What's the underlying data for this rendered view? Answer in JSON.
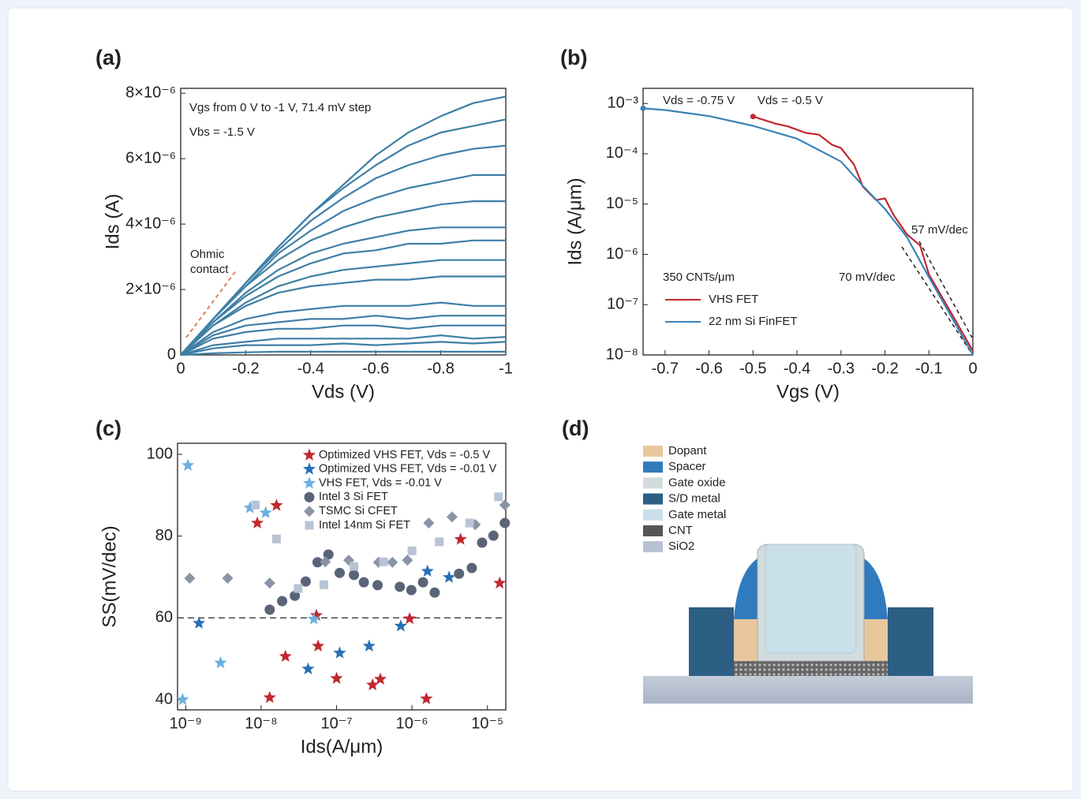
{
  "chart_data": [
    {
      "type": "line",
      "label": "(a)",
      "xlabel": "Vds (V)",
      "ylabel": "Ids (A)",
      "color": "#3f7fa6",
      "xlim": [
        0,
        -1
      ],
      "xticks": [
        0,
        -0.2,
        -0.4,
        -0.6,
        -0.8,
        -1
      ],
      "ylim": [
        0,
        8.15e-06
      ],
      "yticks": [
        0,
        {
          "value": 2e-06,
          "label": "2×10⁻⁶"
        },
        {
          "value": 4e-06,
          "label": "4×10⁻⁶"
        },
        {
          "value": 6e-06,
          "label": "6×10⁻⁶"
        },
        {
          "value": 8e-06,
          "label": "8×10⁻⁶"
        }
      ],
      "annotations": [
        {
          "text": "Vgs from 0 V to -1 V, 71.4 mV step",
          "color": "#222222"
        },
        {
          "text": "Vbs = -1.5 V",
          "color": "#222222"
        },
        {
          "text": "Ohmic",
          "color": "#d9805a"
        },
        {
          "text": "contact",
          "color": "#d9805a"
        }
      ],
      "x": [
        0,
        -0.1,
        -0.2,
        -0.3,
        -0.4,
        -0.5,
        -0.6,
        -0.7,
        -0.8,
        -0.9,
        -1
      ],
      "series": [
        {
          "values": [
            0,
            1.1e-06,
            2.2e-06,
            3.3e-06,
            4.3e-06,
            5.2e-06,
            6.1e-06,
            6.8e-06,
            7.3e-06,
            7.7e-06,
            7.9e-06
          ]
        },
        {
          "values": [
            0,
            1.1e-06,
            2.2e-06,
            3.3e-06,
            4.3e-06,
            5.1e-06,
            5.8e-06,
            6.4e-06,
            6.8e-06,
            7e-06,
            7.2e-06
          ]
        },
        {
          "values": [
            0,
            1.1e-06,
            2.2e-06,
            3.2e-06,
            4.1e-06,
            4.8e-06,
            5.4e-06,
            5.8e-06,
            6.1e-06,
            6.3e-06,
            6.4e-06
          ]
        },
        {
          "values": [
            0,
            1.1e-06,
            2.1e-06,
            3.1e-06,
            3.8e-06,
            4.4e-06,
            4.8e-06,
            5.1e-06,
            5.3e-06,
            5.5e-06,
            5.5e-06
          ]
        },
        {
          "values": [
            0,
            1.1e-06,
            2.1e-06,
            2.9e-06,
            3.5e-06,
            3.9e-06,
            4.2e-06,
            4.4e-06,
            4.6e-06,
            4.7e-06,
            4.7e-06
          ]
        },
        {
          "values": [
            0,
            1e-06,
            1.9e-06,
            2.6e-06,
            3.1e-06,
            3.4e-06,
            3.6e-06,
            3.8e-06,
            3.9e-06,
            3.9e-06,
            3.9e-06
          ]
        },
        {
          "values": [
            0,
            1e-06,
            1.8e-06,
            2.4e-06,
            2.8e-06,
            3.1e-06,
            3.2e-06,
            3.4e-06,
            3.4e-06,
            3.5e-06,
            3.5e-06
          ]
        },
        {
          "values": [
            0,
            9e-07,
            1.6e-06,
            2.1e-06,
            2.4e-06,
            2.6e-06,
            2.7e-06,
            2.8e-06,
            2.9e-06,
            2.9e-06,
            2.9e-06
          ]
        },
        {
          "values": [
            0,
            9e-07,
            1.5e-06,
            1.9e-06,
            2.1e-06,
            2.2e-06,
            2.3e-06,
            2.3e-06,
            2.4e-06,
            2.4e-06,
            2.4e-06
          ]
        },
        {
          "values": [
            0,
            7e-07,
            1.1e-06,
            1.3e-06,
            1.4e-06,
            1.5e-06,
            1.5e-06,
            1.5e-06,
            1.6e-06,
            1.5e-06,
            1.5e-06
          ]
        },
        {
          "values": [
            0,
            6e-07,
            9e-07,
            1e-06,
            1.1e-06,
            1.1e-06,
            1.2e-06,
            1.1e-06,
            1.2e-06,
            1.2e-06,
            1.2e-06
          ]
        },
        {
          "values": [
            0,
            5e-07,
            7e-07,
            8e-07,
            8e-07,
            9e-07,
            9e-07,
            8e-07,
            9e-07,
            9e-07,
            9e-07
          ]
        },
        {
          "values": [
            0,
            3e-07,
            4e-07,
            5e-07,
            5e-07,
            5e-07,
            5e-07,
            5e-07,
            6e-07,
            5e-07,
            5.5e-07
          ]
        },
        {
          "values": [
            0,
            2e-07,
            3e-07,
            3e-07,
            3e-07,
            3.5e-07,
            3e-07,
            3.5e-07,
            4e-07,
            3.5e-07,
            4e-07
          ]
        },
        {
          "values": [
            0,
            5e-08,
            8e-08,
            1e-07,
            1e-07,
            1e-07,
            1e-07,
            1e-07,
            1e-07,
            1e-07,
            1e-07
          ]
        }
      ]
    },
    {
      "type": "line",
      "label": "(b)",
      "xlabel": "Vgs (V)",
      "ylabel": "Ids (A/μm)",
      "yscale": "log",
      "legend": "lower left",
      "start_dot": true,
      "xlim": [
        -0.75,
        0
      ],
      "xticks": [
        -0.7,
        -0.6,
        -0.5,
        -0.4,
        -0.3,
        -0.2,
        -0.1,
        0
      ],
      "ylim": [
        1e-08,
        0.002
      ],
      "yticks": [
        {
          "value": 1e-08,
          "label": "10⁻⁸"
        },
        {
          "value": 1e-07,
          "label": "10⁻⁷"
        },
        {
          "value": 1e-06,
          "label": "10⁻⁶"
        },
        {
          "value": 1e-05,
          "label": "10⁻⁵"
        },
        {
          "value": 0.0001,
          "label": "10⁻⁴"
        },
        {
          "value": 0.001,
          "label": "10⁻³"
        }
      ],
      "annotations": [
        {
          "text": "Vds = -0.75 V",
          "color": "#222222"
        },
        {
          "text": "Vds = -0.5 V",
          "color": "#c0282e"
        },
        {
          "text": "57 mV/dec",
          "color": "#222222"
        },
        {
          "text": "70 mV/dec",
          "color": "#222222"
        },
        {
          "text": "350 CNTs/μm",
          "color": "#222222"
        }
      ],
      "series": [
        {
          "name": "VHS FET",
          "color": "#c0282e",
          "x": [
            -0.5,
            -0.45,
            -0.42,
            -0.38,
            -0.35,
            -0.32,
            -0.3,
            -0.27,
            -0.25,
            -0.22,
            -0.2,
            -0.18,
            -0.15,
            -0.12,
            -0.1,
            -0.05,
            0
          ],
          "values": [
            0.00055,
            0.0004,
            0.00035,
            0.00026,
            0.00024,
            0.00015,
            0.00013,
            6e-05,
            2.2e-05,
            1.2e-05,
            1.3e-05,
            6e-06,
            2.5e-06,
            1.5e-06,
            4e-07,
            7e-08,
            1.2e-08
          ]
        },
        {
          "name": "22 nm Si FinFET",
          "color": "#3b82b8",
          "x": [
            -0.75,
            -0.7,
            -0.6,
            -0.5,
            -0.4,
            -0.3,
            -0.25,
            -0.2,
            -0.15,
            -0.1,
            -0.05,
            0
          ],
          "values": [
            0.0008,
            0.00074,
            0.00056,
            0.00036,
            0.0002,
            7e-05,
            2.3e-05,
            8e-06,
            2.2e-06,
            3.5e-07,
            6e-08,
            1e-08
          ]
        }
      ]
    },
    {
      "type": "scatter",
      "label": "(c)",
      "xlabel": "Ids(A/μm)",
      "ylabel": "SS(mV/dec)",
      "xscale": "log",
      "legend": "upper right",
      "reference_line": 60,
      "xlim": [
        7.8e-10,
        1.75e-05
      ],
      "xticks": [
        {
          "value": 1e-09,
          "label": "10⁻⁹"
        },
        {
          "value": 1e-08,
          "label": "10⁻⁸"
        },
        {
          "value": 1e-07,
          "label": "10⁻⁷"
        },
        {
          "value": 1e-06,
          "label": "10⁻⁶"
        },
        {
          "value": 1e-05,
          "label": "10⁻⁵"
        }
      ],
      "ylim": [
        37.5,
        102.7
      ],
      "yticks": [
        40,
        60,
        80,
        100
      ],
      "series": [
        {
          "name": "Optimized VHS FET, Vds = -0.5 V",
          "color": "#c0282e",
          "marker": "star",
          "x": [
            8.9e-09,
            1.6e-08,
            1.3e-08,
            2.1e-08,
            5.4e-08,
            5.7e-08,
            1e-07,
            3e-07,
            3.8e-07,
            9.3e-07,
            1.55e-06,
            4.4e-06,
            1.45e-05
          ],
          "values": [
            83.2,
            87.5,
            40.5,
            50.6,
            60.6,
            53.1,
            45.2,
            43.6,
            45,
            59.8,
            40.2,
            79.2,
            68.5
          ]
        },
        {
          "name": "Optimized VHS FET, Vds = -0.01 V",
          "color": "#2a70b4",
          "marker": "star",
          "x": [
            1.5e-09,
            4.2e-08,
            1.1e-07,
            2.7e-07,
            7.1e-07,
            1.6e-06,
            3.1e-06
          ],
          "values": [
            58.7,
            47.5,
            51.4,
            53.1,
            58,
            71.4,
            69.9
          ]
        },
        {
          "name": "VHS FET, Vds = -0.01 V",
          "color": "#6aafe0",
          "marker": "star",
          "x": [
            1.07e-09,
            9.1e-10,
            2.9e-09,
            7.1e-09,
            1.15e-08,
            5e-08
          ],
          "values": [
            97.3,
            40,
            49,
            86.9,
            85.7,
            59.7
          ]
        },
        {
          "name": "Intel 3 Si FET",
          "color": "#5a6478",
          "marker": "circle",
          "x": [
            1.3e-08,
            1.9e-08,
            2.8e-08,
            3.9e-08,
            5.6e-08,
            7.8e-08,
            1.1e-07,
            1.7e-07,
            2.3e-07,
            3.5e-07,
            6.9e-07,
            9.8e-07,
            1.4e-06,
            2e-06,
            4.2e-06,
            6.2e-06,
            8.5e-06,
            1.2e-05,
            1.7e-05
          ],
          "values": [
            62,
            64.1,
            65.4,
            68.9,
            73.6,
            75.5,
            71,
            70.5,
            68.7,
            68,
            67.6,
            66.8,
            68.7,
            66.2,
            70.8,
            72.2,
            78.4,
            80.1,
            83.2
          ]
        },
        {
          "name": "TSMC Si CFET",
          "color": "#8a94a6",
          "marker": "diamond",
          "x": [
            1.13e-09,
            3.6e-09,
            1.3e-08,
            7.1e-08,
            1.45e-07,
            3.6e-07,
            5.5e-07,
            8.7e-07,
            1.67e-06,
            3.4e-06,
            6.9e-06,
            1.7e-05
          ],
          "values": [
            69.7,
            69.7,
            68.5,
            73.7,
            74.1,
            73.6,
            73.6,
            74.1,
            83.2,
            84.7,
            82.8,
            87.6
          ]
        },
        {
          "name": "Intel 14nm Si FET",
          "color": "#b8c4d6",
          "marker": "square",
          "x": [
            8.4e-09,
            1.6e-08,
            3.1e-08,
            6.8e-08,
            1.7e-07,
            4.2e-07,
            1e-06,
            2.3e-06,
            5.8e-06,
            1.4e-05
          ],
          "values": [
            87.6,
            79.3,
            67.2,
            68.1,
            72.6,
            73.7,
            76.4,
            78.6,
            83.2,
            89.6
          ]
        }
      ]
    }
  ],
  "diagram": {
    "label": "(d)",
    "legend": [
      {
        "label": "Dopant",
        "color": "#e9c79d"
      },
      {
        "label": "Spacer",
        "color": "#2f7bbd"
      },
      {
        "label": "Gate oxide",
        "color": "#d2dcdc"
      },
      {
        "label": "S/D metal",
        "color": "#2d5f85"
      },
      {
        "label": "Gate metal",
        "color": "#c9dfea"
      },
      {
        "label": "CNT",
        "color": "#555555"
      },
      {
        "label": "SiO2",
        "color": "#b8c2d2"
      }
    ]
  }
}
